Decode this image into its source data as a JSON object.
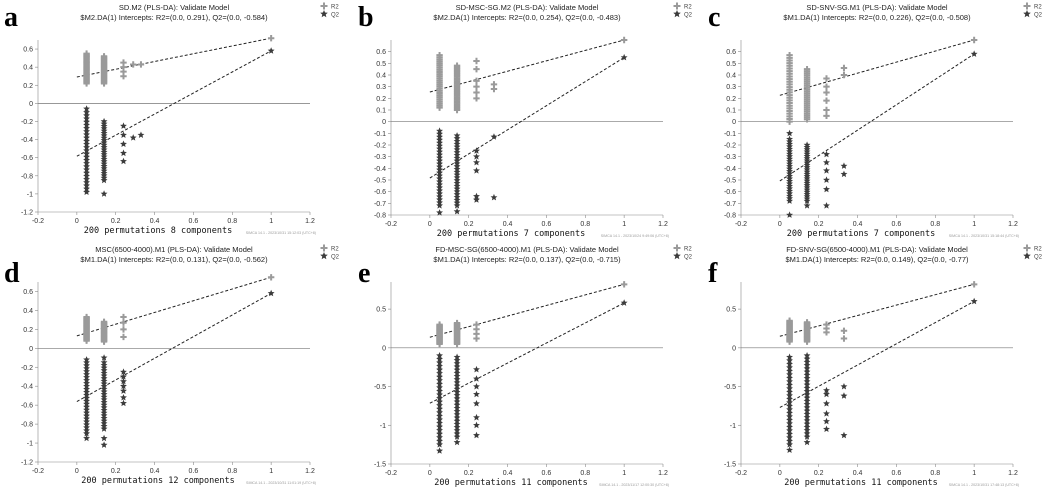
{
  "figure": {
    "footnotes": [
      "SIMCA 14.1 - 2023/10/31 15:12:03 (UTC+8)",
      "SIMCA 14.1 - 2023/10/24 9:49:06 (UTC+8)",
      "SIMCA 14.1 - 2023/10/31 15:18:44 (UTC+8)",
      "SIMCA 14.1 - 2023/10/31 11:01:19 (UTC+8)",
      "SIMCA 14.1 - 2023/11/17 12:00:30 (UTC+8)",
      "SIMCA 14.1 - 2023/10/31 17:48:13 (UTC+8)"
    ]
  },
  "chart_data": [
    {
      "type": "scatter",
      "panel_letter": "a",
      "title": "SD.M2 (PLS-DA): Validate Model",
      "subtitle": "$M2.DA(1) Intercepts: R2=(0.0, 0.291), Q2=(0.0, -0.584)",
      "xlabel": "200 permutations 8 components",
      "xlim": [
        -0.2,
        1.2
      ],
      "ylim": [
        -1.2,
        0.7
      ],
      "xticks": [
        "-0.2",
        "0",
        "0.2",
        "0.4",
        "0.6",
        "0.8",
        "1",
        "1.2"
      ],
      "xtick_values": [
        -0.2,
        0,
        0.2,
        0.4,
        0.6,
        0.8,
        1,
        1.2
      ],
      "yticks": [
        "-1.2",
        "-1",
        "-0.8",
        "-0.6",
        "-0.4",
        "-0.2",
        "0",
        "0.2",
        "0.4",
        "0.6"
      ],
      "ytick_values": [
        -1.2,
        -1,
        -0.8,
        -0.6,
        -0.4,
        -0.2,
        0,
        0.2,
        0.4,
        0.6
      ],
      "legend": [
        "R2",
        "Q2"
      ],
      "colors": {
        "r2": "#9a9a9a",
        "q2": "#3c3c3c",
        "line": "#222222"
      },
      "series": [
        {
          "name": "R2",
          "intercept": 0.291,
          "final_value": 0.72,
          "columns": [
            {
              "x": 0.05,
              "range": [
                0.22,
                0.55
              ]
            },
            {
              "x": 0.14,
              "range": [
                0.22,
                0.52
              ]
            },
            {
              "x": 0.24,
              "values": [
                0.3,
                0.35,
                0.4,
                0.45
              ]
            },
            {
              "x": 0.29,
              "values": [
                0.43
              ]
            },
            {
              "x": 0.33,
              "values": [
                0.43
              ]
            }
          ]
        },
        {
          "name": "Q2",
          "intercept": -0.584,
          "final_value": 0.58,
          "columns": [
            {
              "x": 0.05,
              "range": [
                -0.98,
                -0.1
              ]
            },
            {
              "x": 0.14,
              "range": [
                -0.85,
                -0.2
              ]
            },
            {
              "x": 0.05,
              "values": [
                -0.06
              ]
            },
            {
              "x": 0.14,
              "values": [
                -1.0
              ]
            },
            {
              "x": 0.24,
              "values": [
                -0.25,
                -0.35,
                -0.45,
                -0.55,
                -0.64
              ]
            },
            {
              "x": 0.29,
              "values": [
                -0.38
              ]
            },
            {
              "x": 0.33,
              "values": [
                -0.35
              ]
            }
          ]
        }
      ]
    },
    {
      "type": "scatter",
      "panel_letter": "b",
      "title": "SD-MSC-SG.M2 (PLS-DA): Validate Model",
      "subtitle": "$M2.DA(1) Intercepts: R2=(0.0, 0.254), Q2=(0.0, -0.483)",
      "xlabel": "200 permutations 7 components",
      "xlim": [
        -0.2,
        1.2
      ],
      "ylim": [
        -0.8,
        0.7
      ],
      "xticks": [
        "-0.2",
        "0",
        "0.2",
        "0.4",
        "0.6",
        "0.8",
        "1",
        "1.2"
      ],
      "xtick_values": [
        -0.2,
        0,
        0.2,
        0.4,
        0.6,
        0.8,
        1,
        1.2
      ],
      "yticks": [
        "-0.8",
        "-0.7",
        "-0.6",
        "-0.5",
        "-0.4",
        "-0.3",
        "-0.2",
        "-0.1",
        "0",
        "0.1",
        "0.2",
        "0.3",
        "0.4",
        "0.5",
        "0.6"
      ],
      "ytick_values": [
        -0.8,
        -0.7,
        -0.6,
        -0.5,
        -0.4,
        -0.3,
        -0.2,
        -0.1,
        0,
        0.1,
        0.2,
        0.3,
        0.4,
        0.5,
        0.6
      ],
      "legend": [
        "R2",
        "Q2"
      ],
      "colors": {
        "r2": "#9a9a9a",
        "q2": "#3c3c3c",
        "line": "#222222"
      },
      "series": [
        {
          "name": "R2",
          "intercept": 0.254,
          "final_value": 0.7,
          "columns": [
            {
              "x": 0.05,
              "range": [
                0.12,
                0.57
              ]
            },
            {
              "x": 0.14,
              "range": [
                0.1,
                0.48
              ]
            },
            {
              "x": 0.24,
              "values": [
                0.2,
                0.25,
                0.3,
                0.35,
                0.45,
                0.52
              ]
            },
            {
              "x": 0.33,
              "values": [
                0.28,
                0.32
              ]
            }
          ]
        },
        {
          "name": "Q2",
          "intercept": -0.483,
          "final_value": 0.55,
          "columns": [
            {
              "x": 0.05,
              "range": [
                -0.72,
                -0.08
              ]
            },
            {
              "x": 0.14,
              "range": [
                -0.72,
                -0.12
              ]
            },
            {
              "x": 0.05,
              "values": [
                -0.78
              ]
            },
            {
              "x": 0.14,
              "values": [
                -0.77
              ]
            },
            {
              "x": 0.24,
              "values": [
                -0.25,
                -0.3,
                -0.35,
                -0.42,
                -0.64,
                -0.67
              ]
            },
            {
              "x": 0.33,
              "values": [
                -0.13,
                -0.65
              ]
            }
          ]
        }
      ]
    },
    {
      "type": "scatter",
      "panel_letter": "c",
      "title": "SD-SNV-SG.M1 (PLS-DA): Validate Model",
      "subtitle": "$M1.DA(1) Intercepts: R2=(0.0, 0.226), Q2=(0.0, -0.508)",
      "xlabel": "200 permutations 7 components",
      "xlim": [
        -0.2,
        1.2
      ],
      "ylim": [
        -0.8,
        0.7
      ],
      "xticks": [
        "-0.2",
        "0",
        "0.2",
        "0.4",
        "0.6",
        "0.8",
        "1",
        "1.2"
      ],
      "xtick_values": [
        -0.2,
        0,
        0.2,
        0.4,
        0.6,
        0.8,
        1,
        1.2
      ],
      "yticks": [
        "-0.8",
        "-0.7",
        "-0.6",
        "-0.5",
        "-0.4",
        "-0.3",
        "-0.2",
        "-0.1",
        "0",
        "0.1",
        "0.2",
        "0.3",
        "0.4",
        "0.5",
        "0.6"
      ],
      "ytick_values": [
        -0.8,
        -0.7,
        -0.6,
        -0.5,
        -0.4,
        -0.3,
        -0.2,
        -0.1,
        0,
        0.1,
        0.2,
        0.3,
        0.4,
        0.5,
        0.6
      ],
      "legend": [
        "R2",
        "Q2"
      ],
      "colors": {
        "r2": "#9a9a9a",
        "q2": "#3c3c3c",
        "line": "#222222"
      },
      "series": [
        {
          "name": "R2",
          "intercept": 0.226,
          "final_value": 0.7,
          "columns": [
            {
              "x": 0.05,
              "range": [
                0.0,
                0.57
              ]
            },
            {
              "x": 0.14,
              "range": [
                0.02,
                0.45
              ]
            },
            {
              "x": 0.24,
              "values": [
                0.05,
                0.1,
                0.18,
                0.25,
                0.3,
                0.37
              ]
            },
            {
              "x": 0.33,
              "values": [
                0.4,
                0.46
              ]
            }
          ]
        },
        {
          "name": "Q2",
          "intercept": -0.508,
          "final_value": 0.58,
          "columns": [
            {
              "x": 0.05,
              "range": [
                -0.68,
                -0.15
              ]
            },
            {
              "x": 0.14,
              "range": [
                -0.68,
                -0.2
              ]
            },
            {
              "x": 0.05,
              "values": [
                -0.8,
                -0.1
              ]
            },
            {
              "x": 0.14,
              "values": [
                -0.72
              ]
            },
            {
              "x": 0.24,
              "values": [
                -0.28,
                -0.35,
                -0.42,
                -0.5,
                -0.58,
                -0.72
              ]
            },
            {
              "x": 0.33,
              "values": [
                -0.38,
                -0.45
              ]
            }
          ]
        }
      ]
    },
    {
      "type": "scatter",
      "panel_letter": "d",
      "title": "MSC(6500-4000).M1 (PLS-DA): Validate Model",
      "subtitle": "$M1.DA(1) Intercepts: R2=(0.0, 0.131), Q2=(0.0, -0.562)",
      "xlabel": "200 permutations 12 components",
      "xlim": [
        -0.2,
        1.2
      ],
      "ylim": [
        -1.2,
        0.7
      ],
      "xticks": [
        "-0.2",
        "0",
        "0.2",
        "0.4",
        "0.6",
        "0.8",
        "1",
        "1.2"
      ],
      "xtick_values": [
        -0.2,
        0,
        0.2,
        0.4,
        0.6,
        0.8,
        1,
        1.2
      ],
      "yticks": [
        "-1.2",
        "-1",
        "-0.8",
        "-0.6",
        "-0.4",
        "-0.2",
        "0",
        "0.2",
        "0.4",
        "0.6"
      ],
      "ytick_values": [
        -1.2,
        -1,
        -0.8,
        -0.6,
        -0.4,
        -0.2,
        0,
        0.2,
        0.4,
        0.6
      ],
      "legend": [
        "R2",
        "Q2"
      ],
      "colors": {
        "r2": "#9a9a9a",
        "q2": "#3c3c3c",
        "line": "#222222"
      },
      "series": [
        {
          "name": "R2",
          "intercept": 0.131,
          "final_value": 0.75,
          "columns": [
            {
              "x": 0.05,
              "range": [
                0.08,
                0.33
              ]
            },
            {
              "x": 0.14,
              "range": [
                0.07,
                0.28
              ]
            },
            {
              "x": 0.24,
              "values": [
                0.12,
                0.2,
                0.27,
                0.33
              ]
            }
          ]
        },
        {
          "name": "Q2",
          "intercept": -0.562,
          "final_value": 0.58,
          "columns": [
            {
              "x": 0.05,
              "range": [
                -0.9,
                -0.12
              ]
            },
            {
              "x": 0.14,
              "range": [
                -0.85,
                -0.15
              ]
            },
            {
              "x": 0.05,
              "values": [
                -0.95
              ]
            },
            {
              "x": 0.14,
              "values": [
                -0.1,
                -0.95,
                -1.02
              ]
            },
            {
              "x": 0.24,
              "values": [
                -0.25,
                -0.3,
                -0.35,
                -0.4,
                -0.45,
                -0.52,
                -0.58
              ]
            }
          ]
        }
      ]
    },
    {
      "type": "scatter",
      "panel_letter": "e",
      "title": "FD-MSC-SG(6500-4000).M1 (PLS-DA): Validate Model",
      "subtitle": "$M1.DA(1) Intercepts: R2=(0.0, 0.137), Q2=(0.0, -0.715)",
      "xlabel": "200 permutations 11 components",
      "xlim": [
        -0.2,
        1.2
      ],
      "ylim": [
        -1.5,
        0.85
      ],
      "xticks": [
        "-0.2",
        "0",
        "0.2",
        "0.4",
        "0.6",
        "0.8",
        "1",
        "1.2"
      ],
      "xtick_values": [
        -0.2,
        0,
        0.2,
        0.4,
        0.6,
        0.8,
        1,
        1.2
      ],
      "yticks": [
        "-1.5",
        "-1",
        "-0.5",
        "0",
        "0.5"
      ],
      "ytick_values": [
        -1.5,
        -1,
        -0.5,
        0,
        0.5
      ],
      "legend": [
        "R2",
        "Q2"
      ],
      "colors": {
        "r2": "#9a9a9a",
        "q2": "#3c3c3c",
        "line": "#222222"
      },
      "series": [
        {
          "name": "R2",
          "intercept": 0.137,
          "final_value": 0.82,
          "columns": [
            {
              "x": 0.05,
              "range": [
                0.05,
                0.3
              ]
            },
            {
              "x": 0.14,
              "range": [
                0.05,
                0.32
              ]
            },
            {
              "x": 0.24,
              "values": [
                0.12,
                0.18,
                0.24,
                0.3
              ]
            }
          ]
        },
        {
          "name": "Q2",
          "intercept": -0.715,
          "final_value": 0.58,
          "columns": [
            {
              "x": 0.05,
              "range": [
                -1.25,
                -0.1
              ]
            },
            {
              "x": 0.14,
              "range": [
                -1.15,
                -0.12
              ]
            },
            {
              "x": 0.05,
              "values": [
                -1.33
              ]
            },
            {
              "x": 0.14,
              "values": [
                -1.22
              ]
            },
            {
              "x": 0.24,
              "values": [
                -0.28,
                -0.4,
                -0.5,
                -0.6,
                -0.72,
                -0.9,
                -1.0,
                -1.13
              ]
            }
          ]
        }
      ]
    },
    {
      "type": "scatter",
      "panel_letter": "f",
      "title": "FD-SNV-SG(6500-4000).M1 (PLS-DA): Validate Model",
      "subtitle": "$M1.DA(1) Intercepts: R2=(0.0, 0.149), Q2=(0.0, -0.77)",
      "xlabel": "200 permutations 11 components",
      "xlim": [
        -0.2,
        1.2
      ],
      "ylim": [
        -1.5,
        0.85
      ],
      "xticks": [
        "-0.2",
        "0",
        "0.2",
        "0.4",
        "0.6",
        "0.8",
        "1",
        "1.2"
      ],
      "xtick_values": [
        -0.2,
        0,
        0.2,
        0.4,
        0.6,
        0.8,
        1,
        1.2
      ],
      "yticks": [
        "-1.5",
        "-1",
        "-0.5",
        "0",
        "0.5"
      ],
      "ytick_values": [
        -1.5,
        -1,
        -0.5,
        0,
        0.5
      ],
      "legend": [
        "R2",
        "Q2"
      ],
      "colors": {
        "r2": "#9a9a9a",
        "q2": "#3c3c3c",
        "line": "#222222"
      },
      "series": [
        {
          "name": "R2",
          "intercept": 0.149,
          "final_value": 0.82,
          "columns": [
            {
              "x": 0.05,
              "range": [
                0.08,
                0.35
              ]
            },
            {
              "x": 0.14,
              "range": [
                0.08,
                0.33
              ]
            },
            {
              "x": 0.24,
              "values": [
                0.2,
                0.25,
                0.3
              ]
            },
            {
              "x": 0.33,
              "values": [
                0.12,
                0.22
              ]
            }
          ]
        },
        {
          "name": "Q2",
          "intercept": -0.77,
          "final_value": 0.6,
          "columns": [
            {
              "x": 0.05,
              "range": [
                -1.25,
                -0.12
              ]
            },
            {
              "x": 0.14,
              "range": [
                -1.15,
                -0.1
              ]
            },
            {
              "x": 0.05,
              "values": [
                -1.32
              ]
            },
            {
              "x": 0.14,
              "values": [
                -1.22
              ]
            },
            {
              "x": 0.24,
              "values": [
                -0.55,
                -0.6,
                -0.72,
                -0.85,
                -0.95,
                -1.05
              ]
            },
            {
              "x": 0.33,
              "values": [
                -0.5,
                -0.62,
                -1.13
              ]
            }
          ]
        }
      ]
    }
  ]
}
